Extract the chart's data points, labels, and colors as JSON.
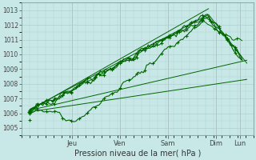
{
  "bg_color": "#c8e8e8",
  "grid_color": "#b0d0d0",
  "line_color": "#006600",
  "ylim": [
    1004.5,
    1013.5
  ],
  "yticks": [
    1005,
    1006,
    1007,
    1008,
    1009,
    1010,
    1011,
    1012,
    1013
  ],
  "xlabel": "Pression niveau de la mer( hPa )",
  "days": [
    "Jeu",
    "Ven",
    "Sam",
    "Dim",
    "Lun"
  ],
  "day_positions": [
    1,
    2,
    3,
    4,
    4.5
  ],
  "xlim": [
    -0.05,
    4.75
  ],
  "title": ""
}
